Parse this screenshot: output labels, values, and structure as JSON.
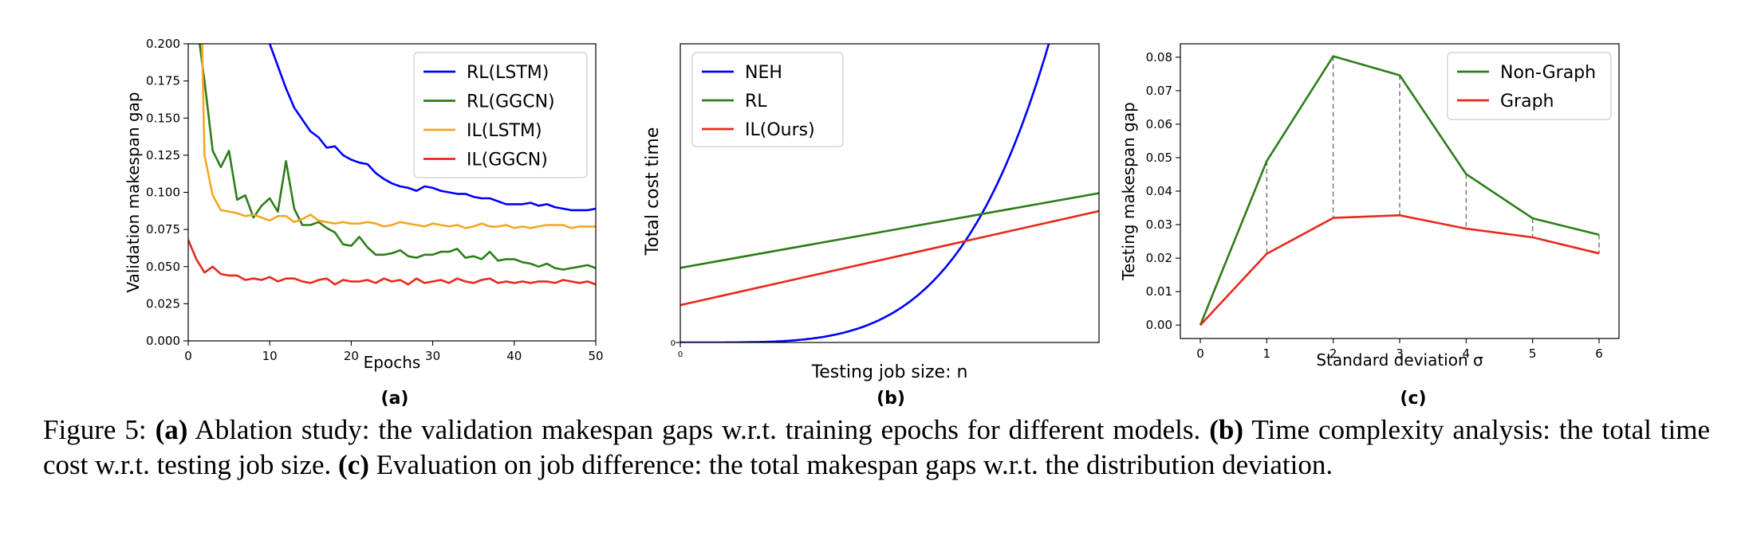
{
  "chart_data": [
    {
      "type": "line",
      "id": "a",
      "panel_label": "(a)",
      "xlabel": "Epochs",
      "ylabel": "Validation makespan gap",
      "xlim": [
        0,
        50
      ],
      "ylim": [
        0,
        0.2
      ],
      "xticks": [
        0,
        10,
        20,
        30,
        40,
        50
      ],
      "xtick_labels": [
        "0",
        "10",
        "20",
        "30",
        "40",
        "50"
      ],
      "yticks": [
        0,
        0.025,
        0.05,
        0.075,
        0.1,
        0.125,
        0.15,
        0.175,
        0.2
      ],
      "ytick_labels": [
        "0.000",
        "0.025",
        "0.050",
        "0.075",
        "0.100",
        "0.125",
        "0.150",
        "0.175",
        "0.200"
      ],
      "legend": "top-right",
      "series": [
        {
          "name": "RL(LSTM)",
          "color": "#0000ff",
          "x": [
            10,
            11,
            12,
            13,
            14,
            15,
            16,
            17,
            18,
            19,
            20,
            21,
            22,
            23,
            24,
            25,
            26,
            27,
            28,
            29,
            30,
            31,
            32,
            33,
            34,
            35,
            36,
            37,
            38,
            39,
            40,
            41,
            42,
            43,
            44,
            45,
            46,
            47,
            48,
            49,
            50
          ],
          "y": [
            0.2,
            0.185,
            0.17,
            0.157,
            0.149,
            0.141,
            0.137,
            0.13,
            0.131,
            0.125,
            0.122,
            0.12,
            0.119,
            0.113,
            0.109,
            0.106,
            0.104,
            0.103,
            0.101,
            0.104,
            0.103,
            0.101,
            0.1,
            0.099,
            0.099,
            0.097,
            0.096,
            0.096,
            0.094,
            0.092,
            0.092,
            0.092,
            0.093,
            0.091,
            0.092,
            0.09,
            0.089,
            0.088,
            0.088,
            0.088,
            0.089
          ]
        },
        {
          "name": "RL(GGCN)",
          "color": "#2e7d1b",
          "x": [
            1.4,
            2,
            3,
            4,
            5,
            6,
            7,
            8,
            9,
            10,
            11,
            12,
            13,
            14,
            15,
            16,
            17,
            18,
            19,
            20,
            21,
            22,
            23,
            24,
            25,
            26,
            27,
            28,
            29,
            30,
            31,
            32,
            33,
            34,
            35,
            36,
            37,
            38,
            39,
            40,
            41,
            42,
            43,
            44,
            45,
            46,
            47,
            48,
            49,
            50
          ],
          "y": [
            0.2,
            0.175,
            0.128,
            0.117,
            0.128,
            0.095,
            0.098,
            0.083,
            0.091,
            0.096,
            0.087,
            0.121,
            0.089,
            0.078,
            0.078,
            0.08,
            0.076,
            0.073,
            0.065,
            0.064,
            0.07,
            0.063,
            0.058,
            0.058,
            0.059,
            0.061,
            0.057,
            0.056,
            0.058,
            0.058,
            0.06,
            0.06,
            0.062,
            0.056,
            0.057,
            0.055,
            0.06,
            0.054,
            0.055,
            0.055,
            0.053,
            0.052,
            0.05,
            0.052,
            0.049,
            0.048,
            0.049,
            0.05,
            0.051,
            0.049
          ]
        },
        {
          "name": "IL(LSTM)",
          "color": "#f5a623",
          "x": [
            1.7,
            2,
            3,
            4,
            5,
            6,
            7,
            8,
            9,
            10,
            11,
            12,
            13,
            14,
            15,
            16,
            17,
            18,
            19,
            20,
            21,
            22,
            23,
            24,
            25,
            26,
            27,
            28,
            29,
            30,
            31,
            32,
            33,
            34,
            35,
            36,
            37,
            38,
            39,
            40,
            41,
            42,
            43,
            44,
            45,
            46,
            47,
            48,
            49,
            50
          ],
          "y": [
            0.2,
            0.125,
            0.098,
            0.088,
            0.087,
            0.086,
            0.084,
            0.085,
            0.083,
            0.081,
            0.084,
            0.084,
            0.08,
            0.082,
            0.085,
            0.081,
            0.08,
            0.079,
            0.08,
            0.079,
            0.079,
            0.08,
            0.079,
            0.077,
            0.078,
            0.08,
            0.079,
            0.078,
            0.077,
            0.079,
            0.078,
            0.077,
            0.078,
            0.076,
            0.077,
            0.079,
            0.077,
            0.077,
            0.078,
            0.076,
            0.077,
            0.076,
            0.077,
            0.078,
            0.078,
            0.078,
            0.076,
            0.077,
            0.077,
            0.077
          ]
        },
        {
          "name": "IL(GGCN)",
          "color": "#e8291c",
          "x": [
            0,
            1,
            2,
            3,
            4,
            5,
            6,
            7,
            8,
            9,
            10,
            11,
            12,
            13,
            14,
            15,
            16,
            17,
            18,
            19,
            20,
            21,
            22,
            23,
            24,
            25,
            26,
            27,
            28,
            29,
            30,
            31,
            32,
            33,
            34,
            35,
            36,
            37,
            38,
            39,
            40,
            41,
            42,
            43,
            44,
            45,
            46,
            47,
            48,
            49,
            50
          ],
          "y": [
            0.068,
            0.055,
            0.046,
            0.05,
            0.045,
            0.044,
            0.044,
            0.041,
            0.042,
            0.041,
            0.043,
            0.04,
            0.042,
            0.042,
            0.04,
            0.039,
            0.041,
            0.042,
            0.038,
            0.041,
            0.04,
            0.04,
            0.041,
            0.039,
            0.042,
            0.04,
            0.041,
            0.038,
            0.042,
            0.039,
            0.04,
            0.041,
            0.039,
            0.042,
            0.04,
            0.039,
            0.041,
            0.042,
            0.039,
            0.04,
            0.039,
            0.04,
            0.039,
            0.04,
            0.04,
            0.039,
            0.041,
            0.04,
            0.039,
            0.04,
            0.038
          ]
        }
      ]
    },
    {
      "type": "line",
      "id": "b",
      "panel_label": "(b)",
      "xlabel": "Testing job size: n",
      "ylabel": "Total cost time",
      "xlim": [
        0,
        10
      ],
      "ylim": [
        0,
        10
      ],
      "xticks": [
        0
      ],
      "xtick_labels": [
        "0"
      ],
      "yticks": [
        0
      ],
      "ytick_labels": [
        "0"
      ],
      "legend": "top-left",
      "series": [
        {
          "name": "NEH",
          "color": "#0000ff",
          "kind": "cubic",
          "x": [
            0,
            1,
            2,
            3,
            4,
            5,
            6,
            7,
            7.5,
            8,
            8.5,
            8.8
          ],
          "y": [
            0,
            0.01,
            0.05,
            0.2,
            0.5,
            1.0,
            1.8,
            3.0,
            3.9,
            5.1,
            6.6,
            10
          ]
        },
        {
          "name": "RL",
          "color": "#2e7d1b",
          "kind": "linear",
          "x": [
            0,
            10
          ],
          "y": [
            2.5,
            5.0
          ]
        },
        {
          "name": "IL(Ours)",
          "color": "#e8291c",
          "kind": "linear",
          "x": [
            0,
            10
          ],
          "y": [
            1.25,
            4.4
          ]
        }
      ]
    },
    {
      "type": "line",
      "id": "c",
      "panel_label": "(c)",
      "xlabel": "Standard deviation σ",
      "ylabel": "Testing makespan gap",
      "xlim": [
        -0.3,
        6.3
      ],
      "ylim": [
        -0.004,
        0.084
      ],
      "xticks": [
        0,
        1,
        2,
        3,
        4,
        5,
        6
      ],
      "xtick_labels": [
        "0",
        "1",
        "2",
        "3",
        "4",
        "5",
        "6"
      ],
      "yticks": [
        0,
        0.01,
        0.02,
        0.03,
        0.04,
        0.05,
        0.06,
        0.07,
        0.08
      ],
      "ytick_labels": [
        "0.00",
        "0.01",
        "0.02",
        "0.03",
        "0.04",
        "0.05",
        "0.06",
        "0.07",
        "0.08"
      ],
      "legend": "top-right",
      "dashed_connectors": true,
      "series": [
        {
          "name": "Non-Graph",
          "color": "#2e7d1b",
          "x": [
            0,
            1,
            2,
            3,
            4,
            5,
            6
          ],
          "y": [
            0.0,
            0.049,
            0.0803,
            0.0746,
            0.0451,
            0.0319,
            0.027
          ]
        },
        {
          "name": "Graph",
          "color": "#e8291c",
          "x": [
            0,
            1,
            2,
            3,
            4,
            5,
            6
          ],
          "y": [
            0.0,
            0.0213,
            0.032,
            0.0328,
            0.0288,
            0.0262,
            0.0214
          ]
        }
      ]
    }
  ],
  "caption": {
    "figure_label": "Figure 5:",
    "a_label": "(a)",
    "a_text": "Ablation study: the validation makespan gaps w.r.t. training epochs for different models.",
    "b_label": "(b)",
    "b_text": "Time complexity analysis: the total time cost w.r.t. testing job size.",
    "c_label": "(c)",
    "c_text": "Evaluation on job difference: the total makespan gaps w.r.t. the distribution deviation."
  }
}
